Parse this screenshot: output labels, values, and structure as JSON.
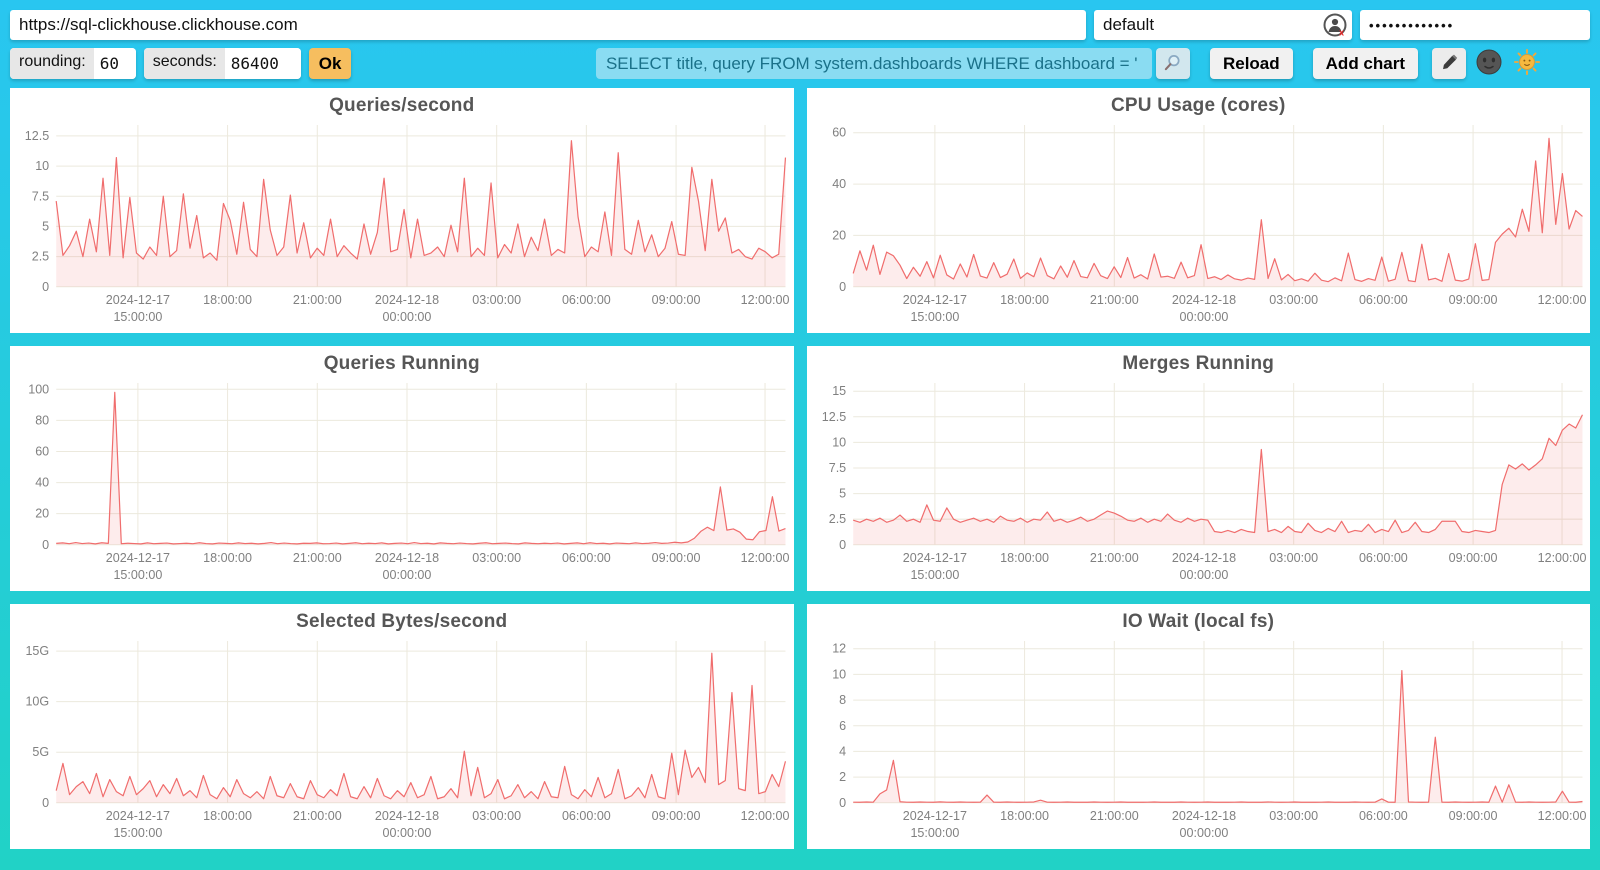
{
  "toolbar": {
    "url": "https://sql-clickhouse.clickhouse.com",
    "user": "default",
    "password_masked": "•••••••••••••",
    "rounding_label": "rounding:",
    "rounding_value": "60",
    "seconds_label": "seconds:",
    "seconds_value": "86400",
    "ok_label": "Ok",
    "query": "SELECT title, query FROM system.dashboards WHERE dashboard = '",
    "reload_label": "Reload",
    "add_chart_label": "Add chart",
    "icons": {
      "auth_user_icon": "user-circle-with-red-x",
      "search_icon": "magnifier",
      "edit_icon": "pencil",
      "dark_theme_icon": "new-moon-face",
      "light_theme_icon": "sun-face"
    },
    "colors": {
      "background_top": "#29c6f0",
      "background_bottom": "#21d2c6",
      "query_input_bg": "#8adcf2",
      "query_input_text": "#1a7189",
      "ok_button_bg": "#f6be5f",
      "chart_line": "#f06d6d",
      "chart_fill": "rgba(240,109,109,0.13)",
      "grid_line": "#ece9dd",
      "tick_text": "#808080",
      "title_text": "#565656"
    }
  },
  "chart_data": [
    {
      "type": "area",
      "title": "Queries/second",
      "x_start": "2024-12-17 12:40:00",
      "x_end": "2024-12-18 12:40:00",
      "ylim": [
        0,
        13.4
      ],
      "grid": true,
      "legend": "none",
      "yticks": [
        {
          "v": 12.5,
          "label": "12.5"
        },
        {
          "v": 10,
          "label": "10"
        },
        {
          "v": 7.5,
          "label": "7.5"
        },
        {
          "v": 5,
          "label": "5"
        },
        {
          "v": 2.5,
          "label": "2.5"
        },
        {
          "v": 0,
          "label": "0"
        }
      ],
      "xticks": [
        {
          "pos": 0.112,
          "lines": [
            "2024-12-17",
            "15:00:00"
          ]
        },
        {
          "pos": 0.235,
          "lines": [
            "18:00:00"
          ]
        },
        {
          "pos": 0.358,
          "lines": [
            "21:00:00"
          ]
        },
        {
          "pos": 0.481,
          "lines": [
            "2024-12-18",
            "00:00:00"
          ]
        },
        {
          "pos": 0.604,
          "lines": [
            "03:00:00"
          ]
        },
        {
          "pos": 0.727,
          "lines": [
            "06:00:00"
          ]
        },
        {
          "pos": 0.85,
          "lines": [
            "09:00:00"
          ]
        },
        {
          "pos": 0.972,
          "lines": [
            "12:00:00"
          ]
        }
      ],
      "values": [
        7.1,
        2.6,
        3.4,
        4.6,
        2.5,
        5.6,
        2.9,
        9.0,
        2.6,
        10.7,
        2.4,
        7.4,
        2.8,
        2.3,
        3.3,
        2.6,
        7.5,
        2.5,
        3.0,
        7.7,
        3.2,
        5.9,
        2.4,
        2.8,
        2.2,
        6.9,
        5.5,
        2.7,
        7.0,
        3.1,
        2.5,
        8.9,
        4.7,
        2.6,
        3.3,
        7.6,
        2.8,
        5.3,
        2.4,
        3.2,
        2.6,
        5.6,
        2.5,
        3.4,
        2.8,
        2.3,
        5.2,
        2.7,
        4.5,
        9.0,
        2.9,
        3.1,
        6.4,
        2.4,
        5.6,
        2.6,
        2.8,
        3.3,
        2.5,
        5.1,
        2.9,
        9.0,
        2.5,
        3.2,
        2.6,
        8.6,
        2.4,
        3.5,
        2.8,
        5.2,
        2.5,
        4.1,
        3.0,
        5.6,
        2.6,
        3.1,
        2.8,
        12.1,
        5.8,
        2.5,
        3.3,
        2.9,
        6.2,
        2.6,
        11.1,
        3.1,
        2.7,
        5.5,
        2.9,
        4.3,
        2.5,
        3.2,
        5.4,
        2.7,
        2.6,
        9.9,
        7.1,
        3.0,
        8.9,
        4.6,
        5.7,
        2.8,
        3.1,
        2.5,
        2.3,
        3.2,
        2.9,
        2.4,
        2.7,
        10.7
      ]
    },
    {
      "type": "area",
      "title": "CPU Usage (cores)",
      "x_start": "2024-12-17 12:40:00",
      "x_end": "2024-12-18 12:40:00",
      "ylim": [
        0,
        63
      ],
      "grid": true,
      "legend": "none",
      "yticks": [
        {
          "v": 60,
          "label": "60"
        },
        {
          "v": 40,
          "label": "40"
        },
        {
          "v": 20,
          "label": "20"
        },
        {
          "v": 0,
          "label": "0"
        }
      ],
      "xticks": [
        {
          "pos": 0.112,
          "lines": [
            "2024-12-17",
            "15:00:00"
          ]
        },
        {
          "pos": 0.235,
          "lines": [
            "18:00:00"
          ]
        },
        {
          "pos": 0.358,
          "lines": [
            "21:00:00"
          ]
        },
        {
          "pos": 0.481,
          "lines": [
            "2024-12-18",
            "00:00:00"
          ]
        },
        {
          "pos": 0.604,
          "lines": [
            "03:00:00"
          ]
        },
        {
          "pos": 0.727,
          "lines": [
            "06:00:00"
          ]
        },
        {
          "pos": 0.85,
          "lines": [
            "09:00:00"
          ]
        },
        {
          "pos": 0.972,
          "lines": [
            "12:00:00"
          ]
        }
      ],
      "values": [
        5.2,
        14.0,
        6.5,
        16.2,
        4.8,
        13.5,
        12.1,
        8.4,
        3.2,
        7.6,
        4.1,
        9.8,
        3.5,
        12.3,
        4.6,
        3.0,
        8.9,
        3.8,
        12.6,
        4.2,
        3.4,
        9.4,
        3.6,
        4.9,
        10.8,
        3.3,
        5.4,
        3.9,
        11.2,
        4.4,
        3.1,
        8.1,
        3.7,
        10.2,
        4.0,
        3.5,
        9.1,
        4.3,
        3.2,
        7.8,
        3.6,
        11.4,
        3.4,
        4.7,
        3.0,
        12.8,
        3.8,
        4.1,
        3.3,
        9.6,
        3.5,
        4.4,
        16.4,
        3.2,
        3.9,
        2.8,
        4.6,
        3.1,
        2.6,
        3.4,
        2.9,
        26.1,
        3.2,
        10.9,
        2.7,
        4.8,
        2.4,
        3.1,
        2.2,
        5.3,
        2.6,
        2.0,
        3.5,
        2.3,
        13.1,
        2.8,
        2.1,
        3.2,
        2.5,
        11.6,
        2.2,
        2.9,
        13.4,
        2.4,
        2.0,
        16.6,
        2.7,
        3.3,
        2.1,
        12.9,
        2.6,
        2.2,
        3.0,
        16.8,
        2.5,
        2.8,
        17.3,
        20.5,
        22.8,
        19.4,
        30.2,
        21.6,
        49.0,
        21.0,
        57.8,
        24.3,
        44.1,
        22.5,
        29.7,
        27.4
      ]
    },
    {
      "type": "area",
      "title": "Queries Running",
      "x_start": "2024-12-17 12:40:00",
      "x_end": "2024-12-18 12:40:00",
      "ylim": [
        0,
        104
      ],
      "grid": true,
      "legend": "none",
      "yticks": [
        {
          "v": 100,
          "label": "100"
        },
        {
          "v": 80,
          "label": "80"
        },
        {
          "v": 60,
          "label": "60"
        },
        {
          "v": 40,
          "label": "40"
        },
        {
          "v": 20,
          "label": "20"
        },
        {
          "v": 0,
          "label": "0"
        }
      ],
      "xticks": [
        {
          "pos": 0.112,
          "lines": [
            "2024-12-17",
            "15:00:00"
          ]
        },
        {
          "pos": 0.235,
          "lines": [
            "18:00:00"
          ]
        },
        {
          "pos": 0.358,
          "lines": [
            "21:00:00"
          ]
        },
        {
          "pos": 0.481,
          "lines": [
            "2024-12-18",
            "00:00:00"
          ]
        },
        {
          "pos": 0.604,
          "lines": [
            "03:00:00"
          ]
        },
        {
          "pos": 0.727,
          "lines": [
            "06:00:00"
          ]
        },
        {
          "pos": 0.85,
          "lines": [
            "09:00:00"
          ]
        },
        {
          "pos": 0.972,
          "lines": [
            "12:00:00"
          ]
        }
      ],
      "values": [
        0.9,
        1.2,
        0.7,
        1.4,
        0.8,
        1.1,
        0.6,
        1.3,
        0.9,
        98.0,
        0.7,
        1.0,
        0.8,
        0.6,
        1.2,
        0.7,
        0.9,
        1.1,
        0.6,
        0.8,
        1.0,
        0.7,
        1.3,
        0.8,
        0.6,
        1.1,
        0.9,
        0.7,
        1.2,
        0.8,
        1.0,
        0.6,
        0.9,
        1.4,
        0.7,
        1.1,
        0.8,
        0.6,
        1.0,
        0.9,
        1.2,
        0.7,
        0.8,
        1.1,
        0.6,
        0.9,
        1.3,
        0.7,
        1.0,
        0.8,
        1.2,
        0.6,
        0.9,
        1.1,
        0.7,
        1.4,
        0.8,
        1.0,
        0.6,
        1.2,
        0.9,
        0.7,
        1.1,
        0.8,
        0.6,
        1.0,
        1.3,
        0.7,
        0.9,
        1.1,
        0.8,
        0.6,
        1.2,
        0.9,
        0.7,
        1.0,
        0.8,
        1.1,
        0.6,
        0.9,
        1.2,
        0.7,
        1.3,
        0.8,
        1.0,
        0.6,
        1.1,
        0.9,
        0.7,
        1.2,
        0.8,
        1.0,
        1.4,
        0.9,
        1.1,
        1.6,
        1.2,
        1.8,
        4.2,
        8.6,
        11.3,
        9.1,
        37.2,
        9.4,
        10.2,
        8.1,
        3.6,
        3.2,
        8.4,
        9.2,
        30.9,
        8.8,
        10.4
      ]
    },
    {
      "type": "area",
      "title": "Merges Running",
      "x_start": "2024-12-17 12:40:00",
      "x_end": "2024-12-18 12:40:00",
      "ylim": [
        0,
        15.8
      ],
      "grid": true,
      "legend": "none",
      "yticks": [
        {
          "v": 15,
          "label": "15"
        },
        {
          "v": 12.5,
          "label": "12.5"
        },
        {
          "v": 10,
          "label": "10"
        },
        {
          "v": 7.5,
          "label": "7.5"
        },
        {
          "v": 5,
          "label": "5"
        },
        {
          "v": 2.5,
          "label": "2.5"
        },
        {
          "v": 0,
          "label": "0"
        }
      ],
      "xticks": [
        {
          "pos": 0.112,
          "lines": [
            "2024-12-17",
            "15:00:00"
          ]
        },
        {
          "pos": 0.235,
          "lines": [
            "18:00:00"
          ]
        },
        {
          "pos": 0.358,
          "lines": [
            "21:00:00"
          ]
        },
        {
          "pos": 0.481,
          "lines": [
            "2024-12-18",
            "00:00:00"
          ]
        },
        {
          "pos": 0.604,
          "lines": [
            "03:00:00"
          ]
        },
        {
          "pos": 0.727,
          "lines": [
            "06:00:00"
          ]
        },
        {
          "pos": 0.85,
          "lines": [
            "09:00:00"
          ]
        },
        {
          "pos": 0.972,
          "lines": [
            "12:00:00"
          ]
        }
      ],
      "values": [
        2.4,
        2.2,
        2.5,
        2.3,
        2.6,
        2.2,
        2.4,
        2.9,
        2.3,
        2.5,
        2.2,
        3.9,
        2.4,
        2.3,
        3.6,
        2.5,
        2.2,
        2.4,
        2.6,
        2.3,
        2.5,
        2.2,
        2.8,
        2.4,
        2.3,
        2.6,
        2.2,
        2.5,
        2.4,
        3.2,
        2.3,
        2.5,
        2.2,
        2.4,
        2.7,
        2.3,
        2.5,
        2.9,
        3.3,
        3.1,
        2.8,
        2.4,
        2.3,
        2.6,
        2.2,
        2.5,
        2.3,
        3.0,
        2.4,
        2.2,
        2.6,
        2.3,
        2.5,
        2.4,
        1.3,
        1.2,
        1.4,
        1.2,
        1.5,
        1.3,
        1.2,
        9.3,
        1.3,
        1.5,
        1.2,
        1.8,
        1.3,
        1.2,
        2.1,
        1.4,
        1.2,
        1.6,
        1.3,
        2.3,
        1.2,
        1.4,
        1.3,
        2.0,
        1.2,
        1.5,
        1.3,
        2.4,
        1.2,
        1.4,
        2.2,
        1.3,
        1.2,
        1.5,
        2.3,
        2.3,
        2.3,
        1.3,
        1.2,
        1.4,
        1.3,
        1.2,
        1.4,
        5.9,
        7.8,
        7.4,
        7.9,
        7.3,
        7.8,
        8.4,
        10.4,
        9.7,
        11.2,
        11.8,
        11.4,
        12.7
      ]
    },
    {
      "type": "area",
      "title": "Selected Bytes/second",
      "x_start": "2024-12-17 12:40:00",
      "x_end": "2024-12-18 12:40:00",
      "ylim": [
        0,
        16.0
      ],
      "unit": "G",
      "grid": true,
      "legend": "none",
      "yticks": [
        {
          "v": 15,
          "label": "15G"
        },
        {
          "v": 10,
          "label": "10G"
        },
        {
          "v": 5,
          "label": "5G"
        },
        {
          "v": 0,
          "label": "0"
        }
      ],
      "xticks": [
        {
          "pos": 0.112,
          "lines": [
            "2024-12-17",
            "15:00:00"
          ]
        },
        {
          "pos": 0.235,
          "lines": [
            "18:00:00"
          ]
        },
        {
          "pos": 0.358,
          "lines": [
            "21:00:00"
          ]
        },
        {
          "pos": 0.481,
          "lines": [
            "2024-12-18",
            "00:00:00"
          ]
        },
        {
          "pos": 0.604,
          "lines": [
            "03:00:00"
          ]
        },
        {
          "pos": 0.727,
          "lines": [
            "06:00:00"
          ]
        },
        {
          "pos": 0.85,
          "lines": [
            "09:00:00"
          ]
        },
        {
          "pos": 0.972,
          "lines": [
            "12:00:00"
          ]
        }
      ],
      "values": [
        1.2,
        3.9,
        0.8,
        1.6,
        2.1,
        0.9,
        2.9,
        0.6,
        2.3,
        1.1,
        0.7,
        2.6,
        0.8,
        1.4,
        2.2,
        0.6,
        1.8,
        0.9,
        2.4,
        0.7,
        1.2,
        0.5,
        2.7,
        0.8,
        0.4,
        1.5,
        0.6,
        2.3,
        0.9,
        0.5,
        1.1,
        0.4,
        2.6,
        0.7,
        0.5,
        1.9,
        0.6,
        0.4,
        2.2,
        0.8,
        0.5,
        1.3,
        0.7,
        2.9,
        0.6,
        0.4,
        1.6,
        0.5,
        2.4,
        0.7,
        0.4,
        1.2,
        0.6,
        2.0,
        0.5,
        0.8,
        2.6,
        0.4,
        0.6,
        1.4,
        0.5,
        5.1,
        0.7,
        3.5,
        0.5,
        0.9,
        2.3,
        0.4,
        0.7,
        1.8,
        0.5,
        1.1,
        0.4,
        2.1,
        0.6,
        0.5,
        3.6,
        0.8,
        0.4,
        1.3,
        0.6,
        2.5,
        0.5,
        0.9,
        3.3,
        0.4,
        0.7,
        1.5,
        0.5,
        2.8,
        0.6,
        0.4,
        4.9,
        0.8,
        5.2,
        2.5,
        3.5,
        2.0,
        14.8,
        1.8,
        2.2,
        10.9,
        1.4,
        1.2,
        11.6,
        0.9,
        1.1,
        2.8,
        1.6,
        4.1
      ]
    },
    {
      "type": "area",
      "title": "IO Wait (local fs)",
      "x_start": "2024-12-17 12:40:00",
      "x_end": "2024-12-18 12:40:00",
      "ylim": [
        0,
        12.6
      ],
      "grid": true,
      "legend": "none",
      "yticks": [
        {
          "v": 12,
          "label": "12"
        },
        {
          "v": 10,
          "label": "10"
        },
        {
          "v": 8,
          "label": "8"
        },
        {
          "v": 6,
          "label": "6"
        },
        {
          "v": 4,
          "label": "4"
        },
        {
          "v": 2,
          "label": "2"
        },
        {
          "v": 0,
          "label": "0"
        }
      ],
      "xticks": [
        {
          "pos": 0.112,
          "lines": [
            "2024-12-17",
            "15:00:00"
          ]
        },
        {
          "pos": 0.235,
          "lines": [
            "18:00:00"
          ]
        },
        {
          "pos": 0.358,
          "lines": [
            "21:00:00"
          ]
        },
        {
          "pos": 0.481,
          "lines": [
            "2024-12-18",
            "00:00:00"
          ]
        },
        {
          "pos": 0.604,
          "lines": [
            "03:00:00"
          ]
        },
        {
          "pos": 0.727,
          "lines": [
            "06:00:00"
          ]
        },
        {
          "pos": 0.85,
          "lines": [
            "09:00:00"
          ]
        },
        {
          "pos": 0.972,
          "lines": [
            "12:00:00"
          ]
        }
      ],
      "values": [
        0.05,
        0.04,
        0.06,
        0.05,
        0.7,
        1.0,
        3.3,
        0.08,
        0.05,
        0.04,
        0.06,
        0.05,
        0.04,
        0.07,
        0.05,
        0.04,
        0.06,
        0.05,
        0.04,
        0.05,
        0.6,
        0.05,
        0.04,
        0.06,
        0.05,
        0.04,
        0.05,
        0.06,
        0.2,
        0.05,
        0.04,
        0.05,
        0.06,
        0.04,
        0.05,
        0.04,
        0.06,
        0.05,
        0.04,
        0.05,
        0.06,
        0.04,
        0.05,
        0.04,
        0.05,
        0.06,
        0.04,
        0.05,
        0.04,
        0.06,
        0.05,
        0.04,
        0.05,
        0.06,
        0.04,
        0.05,
        0.04,
        0.05,
        0.06,
        0.04,
        0.05,
        0.04,
        0.06,
        0.05,
        0.04,
        0.05,
        0.06,
        0.04,
        0.05,
        0.04,
        0.05,
        0.06,
        0.04,
        0.05,
        0.04,
        0.06,
        0.05,
        0.04,
        0.05,
        0.3,
        0.05,
        0.04,
        10.3,
        0.06,
        0.05,
        0.04,
        0.05,
        5.1,
        0.05,
        0.04,
        0.06,
        0.05,
        0.04,
        0.05,
        0.06,
        0.04,
        1.3,
        0.05,
        1.4,
        0.05,
        0.04,
        0.06,
        0.05,
        0.04,
        0.05,
        0.06,
        0.9,
        0.05,
        0.04,
        0.1
      ]
    }
  ]
}
